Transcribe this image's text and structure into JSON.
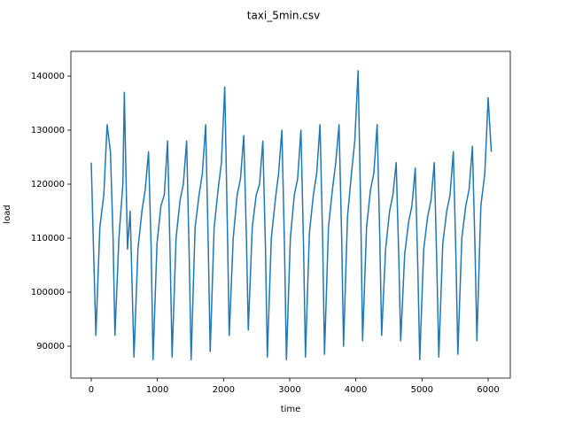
{
  "chart_data": {
    "type": "line",
    "title": "taxi_5min.csv",
    "x_label": "time",
    "y_label": "load",
    "xlim": [
      -308,
      6335
    ],
    "ylim": [
      84100,
      144590
    ],
    "xticks": [
      0,
      1000,
      2000,
      3000,
      4000,
      5000,
      6000
    ],
    "yticks": [
      90000,
      100000,
      110000,
      120000,
      130000,
      140000
    ],
    "series": [
      {
        "name": "load",
        "color": "#1f77b4",
        "x": [
          0,
          30,
          70,
          130,
          190,
          240,
          290,
          330,
          358,
          418,
          478,
          500,
          548,
          588,
          646,
          706,
          766,
          816,
          866,
          906,
          934,
          994,
          1054,
          1104,
          1154,
          1194,
          1222,
          1282,
          1342,
          1392,
          1442,
          1482,
          1510,
          1570,
          1630,
          1680,
          1730,
          1770,
          1798,
          1858,
          1918,
          1968,
          2018,
          2058,
          2086,
          2146,
          2206,
          2256,
          2306,
          2346,
          2374,
          2434,
          2494,
          2544,
          2594,
          2634,
          2662,
          2722,
          2782,
          2832,
          2882,
          2922,
          2950,
          3010,
          3070,
          3120,
          3170,
          3210,
          3238,
          3298,
          3358,
          3408,
          3458,
          3498,
          3526,
          3586,
          3646,
          3696,
          3746,
          3786,
          3814,
          3874,
          3934,
          3984,
          4034,
          4074,
          4102,
          4162,
          4222,
          4272,
          4322,
          4362,
          4390,
          4450,
          4510,
          4560,
          4610,
          4650,
          4678,
          4738,
          4798,
          4848,
          4898,
          4938,
          4966,
          5026,
          5086,
          5136,
          5186,
          5226,
          5254,
          5314,
          5374,
          5424,
          5474,
          5514,
          5542,
          5602,
          5662,
          5712,
          5762,
          5802,
          5830,
          5890,
          5950,
          6000,
          6048
        ],
        "values": [
          124000,
          110000,
          92000,
          112000,
          118000,
          131000,
          126000,
          110000,
          92000,
          110000,
          120000,
          137000,
          108000,
          115000,
          88000,
          108000,
          115000,
          119000,
          126000,
          108000,
          87500,
          109000,
          116000,
          118000,
          128000,
          106000,
          88000,
          110000,
          117000,
          120000,
          128000,
          106000,
          87500,
          112000,
          118000,
          122000,
          131000,
          108000,
          89000,
          112000,
          119000,
          124000,
          138000,
          112000,
          92000,
          110000,
          118000,
          121000,
          129000,
          110000,
          93000,
          112000,
          118000,
          120000,
          128000,
          108000,
          88000,
          110000,
          117000,
          122000,
          130000,
          108000,
          87500,
          110000,
          118000,
          121000,
          130000,
          108000,
          88000,
          111000,
          118000,
          122000,
          131000,
          110000,
          88500,
          112000,
          119000,
          124000,
          131000,
          110000,
          90000,
          114000,
          122000,
          128000,
          141000,
          115000,
          91000,
          112000,
          119000,
          122000,
          131000,
          110000,
          92000,
          108000,
          115000,
          118000,
          124000,
          106000,
          91000,
          107000,
          113000,
          116000,
          123000,
          104000,
          87500,
          108000,
          114000,
          117000,
          124000,
          104000,
          88000,
          109000,
          115000,
          118000,
          126000,
          106000,
          88500,
          110000,
          116000,
          119000,
          127000,
          108000,
          91000,
          116000,
          122000,
          136000,
          126000
        ]
      }
    ]
  }
}
